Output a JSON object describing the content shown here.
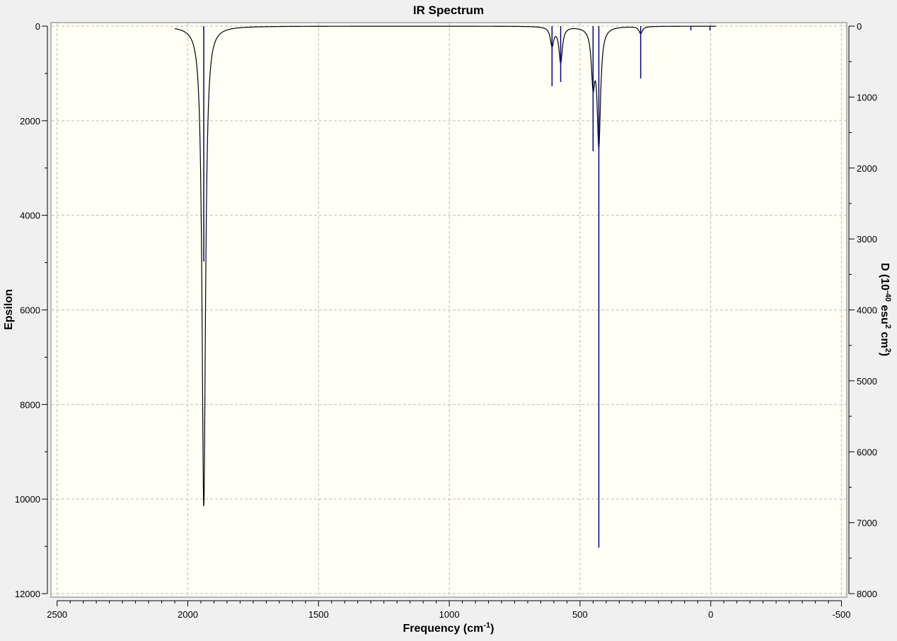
{
  "chart_data": {
    "type": "line",
    "title": "IR Spectrum",
    "xlabel": "Frequency (cm",
    "xlabel_sup": "-1",
    "xlabel_end": ")",
    "ylabel": "Epsilon",
    "y2label_parts": [
      "D (10",
      "-40",
      " esu",
      "2",
      " cm",
      "2",
      ")"
    ],
    "xlim": [
      2500,
      -500
    ],
    "ylim": [
      0,
      12000
    ],
    "y2lim": [
      0,
      8000
    ],
    "y_inverted": true,
    "grid": true,
    "xticks": [
      2500,
      2000,
      1500,
      1000,
      500,
      0,
      -500
    ],
    "xtick_labels": [
      "2500",
      "2000",
      "1500",
      "1000",
      "500",
      "0",
      "-500"
    ],
    "yticks": [
      0,
      2000,
      4000,
      6000,
      8000,
      10000,
      12000
    ],
    "ytick_labels": [
      "0",
      "2000",
      "4000",
      "6000",
      "8000",
      "10000",
      "12000"
    ],
    "y2ticks": [
      0,
      1000,
      2000,
      3000,
      4000,
      5000,
      6000,
      7000,
      8000
    ],
    "y2tick_labels": [
      "0",
      "1000",
      "2000",
      "3000",
      "4000",
      "5000",
      "6000",
      "7000",
      "8000"
    ],
    "curve_color": "#000000",
    "stick_color": "#00008b",
    "plot_background": "#fffff5",
    "sticks": [
      {
        "freq": 1939,
        "D": 3317
      },
      {
        "freq": 607,
        "D": 847
      },
      {
        "freq": 574,
        "D": 787
      },
      {
        "freq": 450,
        "D": 1763
      },
      {
        "freq": 428,
        "D": 7351
      },
      {
        "freq": 268,
        "D": 737
      },
      {
        "freq": 76,
        "D": 60
      },
      {
        "freq": 3,
        "D": 60
      }
    ],
    "curve_peaks": [
      {
        "freq": 1939,
        "epsilon": 10150
      },
      {
        "freq": 607,
        "epsilon": 390
      },
      {
        "freq": 574,
        "epsilon": 750
      },
      {
        "freq": 450,
        "epsilon": 1100
      },
      {
        "freq": 428,
        "epsilon": 2440
      },
      {
        "freq": 268,
        "epsilon": 150
      }
    ],
    "curve_range": [
      2050,
      -20
    ]
  }
}
